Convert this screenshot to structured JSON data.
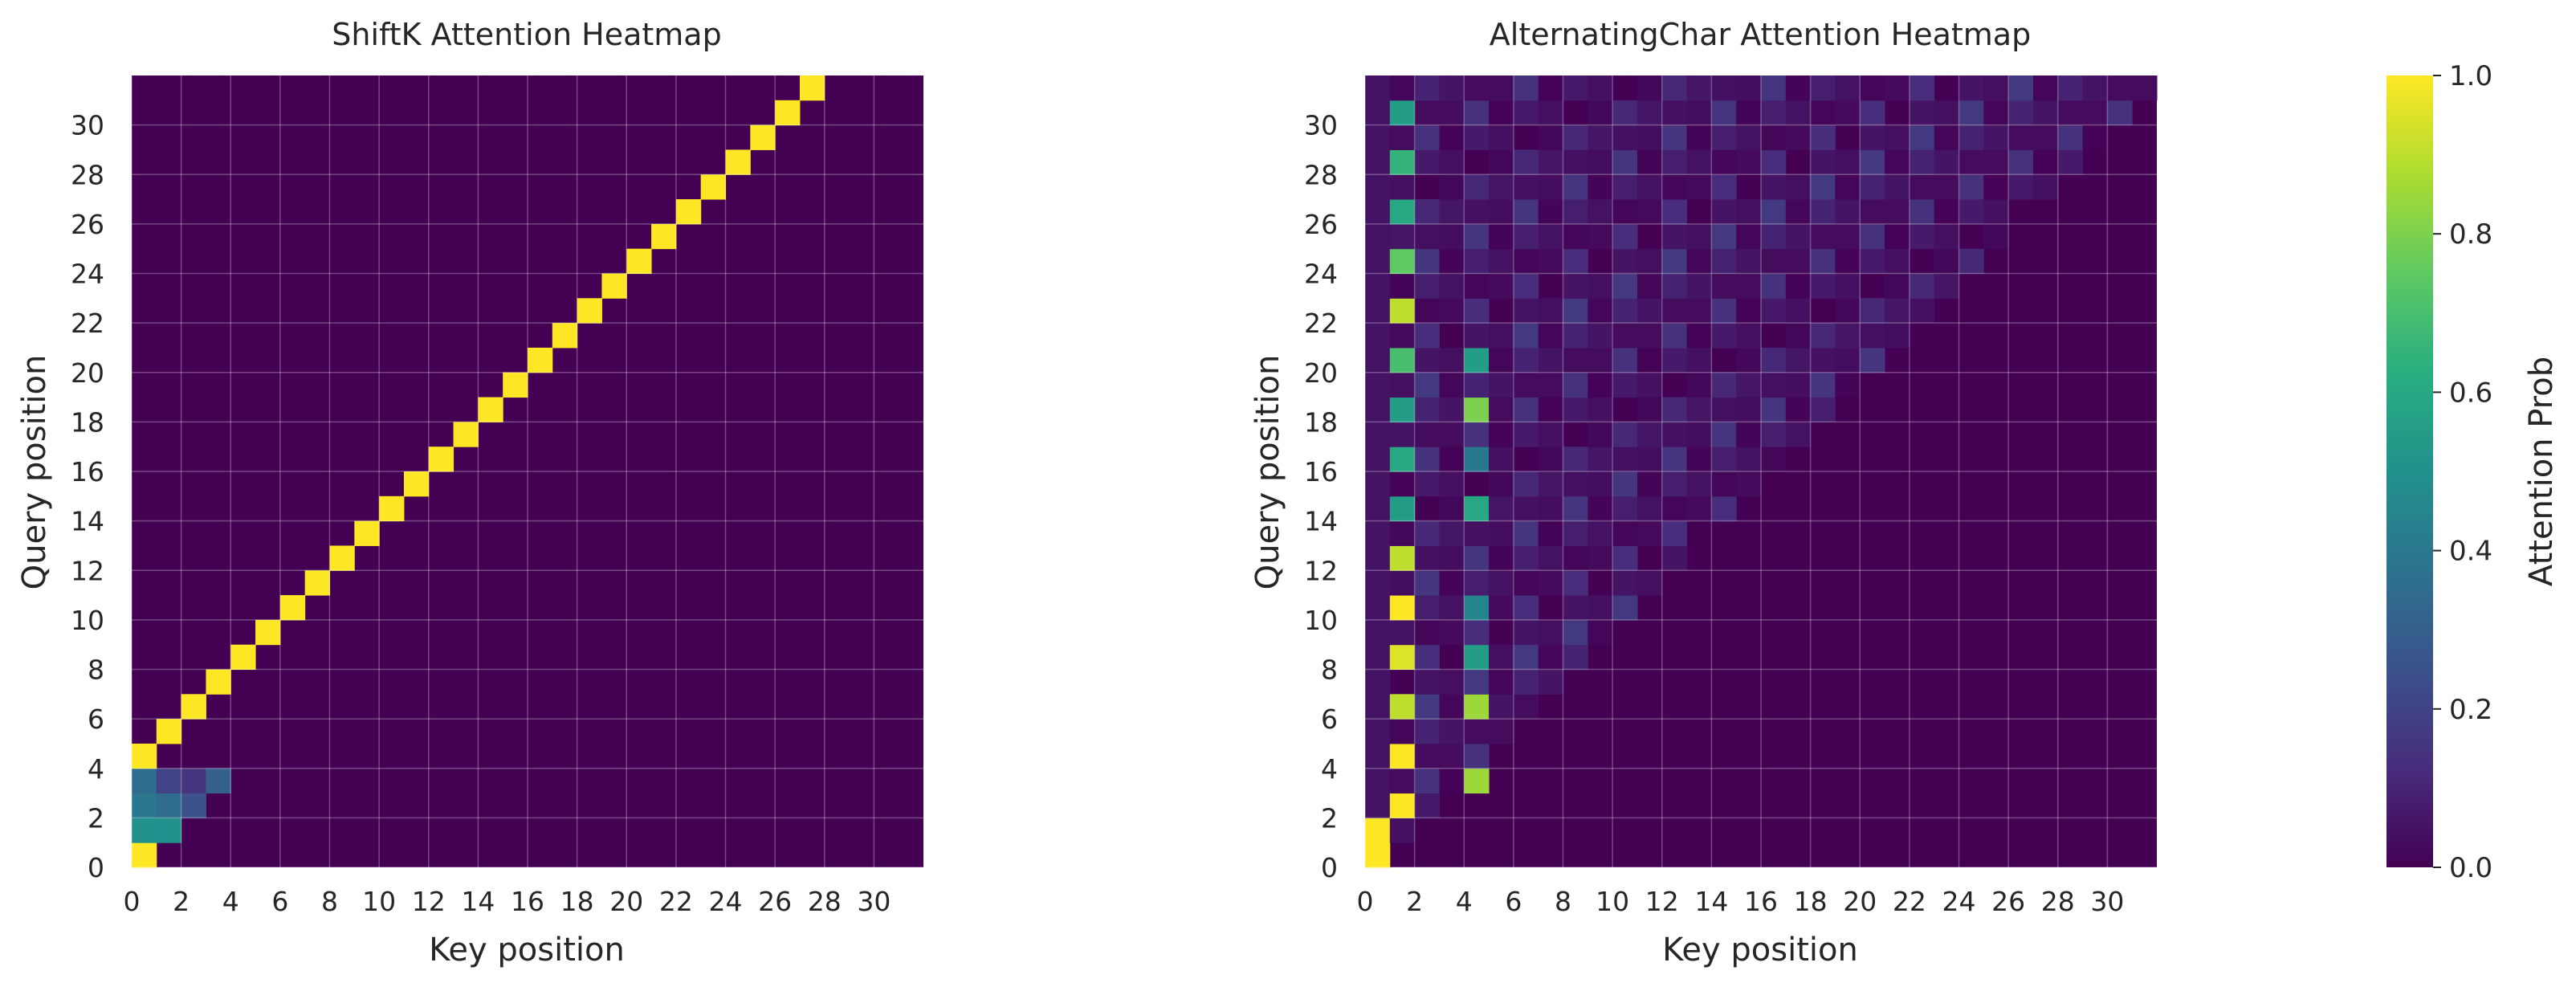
{
  "chart_data": [
    {
      "type": "heatmap",
      "title": "ShiftK Attention Heatmap",
      "xlabel": "Key position",
      "ylabel": "Query position",
      "size": 32,
      "x_ticks": [
        0,
        2,
        4,
        6,
        8,
        10,
        12,
        14,
        16,
        18,
        20,
        22,
        24,
        26,
        28,
        30
      ],
      "y_ticks": [
        0,
        2,
        4,
        6,
        8,
        10,
        12,
        14,
        16,
        18,
        20,
        22,
        24,
        26,
        28,
        30
      ],
      "vmin": 0.0,
      "vmax": 1.0,
      "colormap": "viridis",
      "grid": true,
      "cells": [
        [
          0,
          0,
          1.0
        ],
        [
          1,
          0,
          0.5
        ],
        [
          1,
          1,
          0.5
        ],
        [
          2,
          0,
          0.4
        ],
        [
          2,
          1,
          0.35
        ],
        [
          2,
          2,
          0.25
        ],
        [
          3,
          0,
          0.35
        ],
        [
          3,
          1,
          0.2
        ],
        [
          3,
          2,
          0.15
        ],
        [
          3,
          3,
          0.3
        ],
        [
          4,
          0,
          1.0
        ],
        [
          5,
          1,
          1.0
        ],
        [
          6,
          2,
          1.0
        ],
        [
          7,
          3,
          1.0
        ],
        [
          8,
          4,
          1.0
        ],
        [
          9,
          5,
          1.0
        ],
        [
          10,
          6,
          1.0
        ],
        [
          11,
          7,
          1.0
        ],
        [
          12,
          8,
          1.0
        ],
        [
          13,
          9,
          1.0
        ],
        [
          14,
          10,
          1.0
        ],
        [
          15,
          11,
          1.0
        ],
        [
          16,
          12,
          1.0
        ],
        [
          17,
          13,
          1.0
        ],
        [
          18,
          14,
          1.0
        ],
        [
          19,
          15,
          1.0
        ],
        [
          20,
          16,
          1.0
        ],
        [
          21,
          17,
          1.0
        ],
        [
          22,
          18,
          1.0
        ],
        [
          23,
          19,
          1.0
        ],
        [
          24,
          20,
          1.0
        ],
        [
          25,
          21,
          1.0
        ],
        [
          26,
          22,
          1.0
        ],
        [
          27,
          23,
          1.0
        ],
        [
          28,
          24,
          1.0
        ],
        [
          29,
          25,
          1.0
        ],
        [
          30,
          26,
          1.0
        ],
        [
          31,
          27,
          1.0
        ]
      ]
    },
    {
      "type": "heatmap",
      "title": "AlternatingChar Attention Heatmap",
      "xlabel": "Key position",
      "ylabel": "Query position",
      "size": 32,
      "x_ticks": [
        0,
        2,
        4,
        6,
        8,
        10,
        12,
        14,
        16,
        18,
        20,
        22,
        24,
        26,
        28,
        30
      ],
      "y_ticks": [
        0,
        2,
        4,
        6,
        8,
        10,
        12,
        14,
        16,
        18,
        20,
        22,
        24,
        26,
        28,
        30
      ],
      "vmin": 0.0,
      "vmax": 1.0,
      "colormap": "viridis",
      "grid": true,
      "pattern": {
        "causal": true,
        "first_column_value": 1.0,
        "column1_values": [
          0,
          0,
          1.0,
          0,
          1.0,
          0,
          0.9,
          0,
          0.95,
          0,
          1.0,
          0,
          0.9,
          0,
          0.55,
          0,
          0.6,
          0,
          0.55,
          0,
          0.7,
          0,
          0.9,
          0,
          0.75,
          0,
          0.6,
          0,
          0.65,
          0,
          0.55,
          0
        ],
        "column4_values": {
          "3": 0.85,
          "6": 0.85,
          "8": 0.55,
          "10": 0.45,
          "14": 0.6,
          "16": 0.4,
          "18": 0.8,
          "20": 0.55
        },
        "background_max": 0.18
      },
      "colorbar": {
        "label": "Attention Prob",
        "ticks": [
          "0.0",
          "0.2",
          "0.4",
          "0.6",
          "0.8",
          "1.0"
        ]
      }
    }
  ]
}
